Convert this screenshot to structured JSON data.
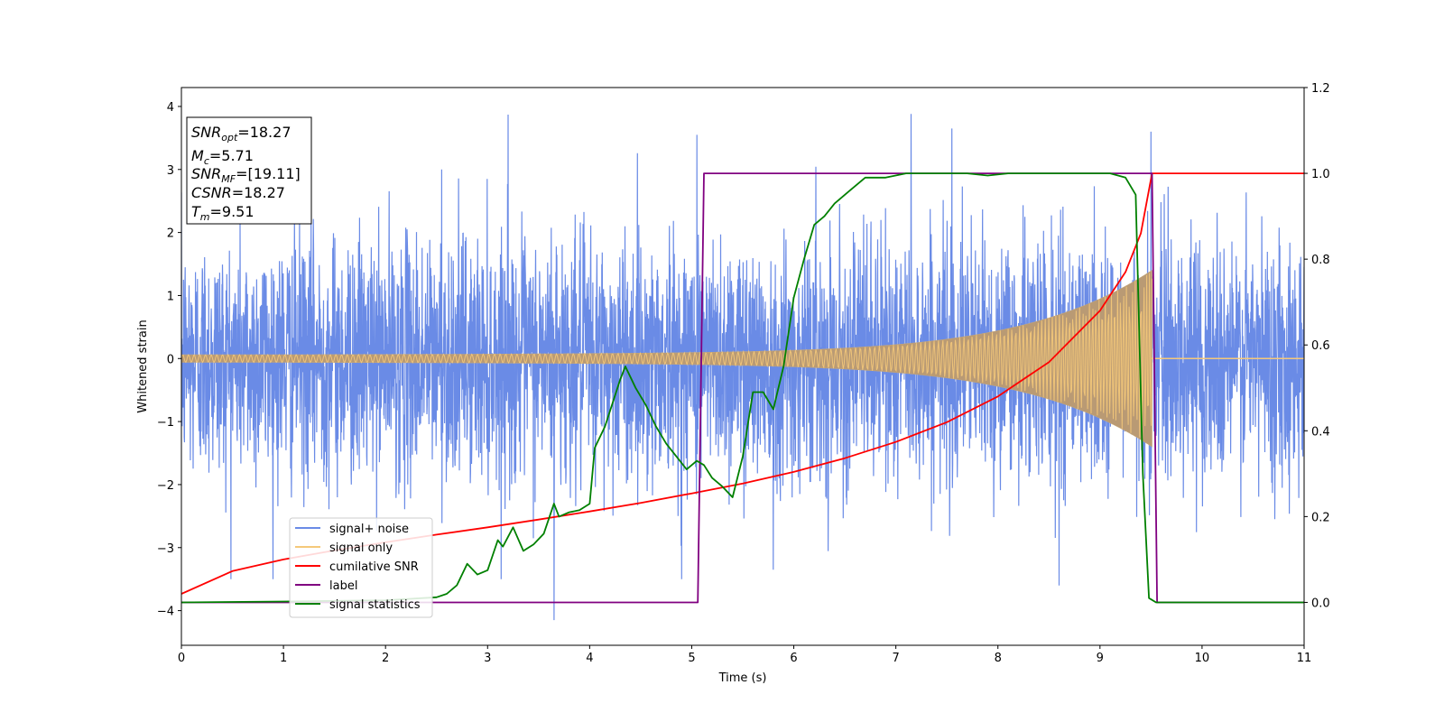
{
  "chart_data": {
    "type": "line",
    "xlabel": "Time (s)",
    "ylabel": "Whitened strain",
    "xlim": [
      0,
      11
    ],
    "ylim_left": [
      -4.55,
      4.3
    ],
    "ylim_right": [
      -0.1,
      1.2
    ],
    "x_ticks": [
      "0",
      "1",
      "2",
      "3",
      "4",
      "5",
      "6",
      "7",
      "8",
      "9",
      "10",
      "11"
    ],
    "y_ticks_left": [
      "4",
      "3",
      "2",
      "1",
      "0",
      "−1",
      "−2",
      "−3",
      "−4"
    ],
    "y_ticks_right": [
      "1.2",
      "1.0",
      "0.8",
      "0.6",
      "0.4",
      "0.2",
      "0.0"
    ],
    "merger_time": 9.51,
    "series": [
      {
        "name": "signal+ noise",
        "color": "#6a8be6",
        "axis": "left",
        "std": 0.95,
        "spikes": [
          [
            3.2,
            3.87
          ],
          [
            7.15,
            3.88
          ],
          [
            3.65,
            -4.15
          ],
          [
            5.05,
            3.55
          ],
          [
            5.8,
            -3.35
          ],
          [
            7.55,
            3.65
          ],
          [
            9.5,
            3.6
          ],
          [
            4.9,
            -3.5
          ],
          [
            8.6,
            -3.6
          ],
          [
            2.55,
            3.0
          ]
        ]
      },
      {
        "name": "signal only",
        "color": "#f5c97a",
        "axis": "left",
        "amplitude_start": 0.06,
        "amplitude_end": 1.3
      },
      {
        "name": "cumilative SNR",
        "color": "#ff0000",
        "axis": "right",
        "x": [
          0,
          0.5,
          1,
          1.5,
          2,
          2.5,
          3,
          3.5,
          4,
          4.5,
          5,
          5.5,
          6,
          6.5,
          7,
          7.5,
          8,
          8.5,
          9,
          9.25,
          9.4,
          9.51,
          11
        ],
        "y": [
          0.02,
          0.073,
          0.1,
          0.121,
          0.14,
          0.158,
          0.175,
          0.193,
          0.212,
          0.232,
          0.254,
          0.277,
          0.304,
          0.336,
          0.374,
          0.42,
          0.48,
          0.56,
          0.68,
          0.77,
          0.86,
          1.0,
          1.0
        ]
      },
      {
        "name": "label",
        "color": "#800080",
        "axis": "right",
        "x": [
          0,
          5.06,
          5.12,
          9.51,
          9.56,
          11
        ],
        "y": [
          0,
          0,
          1,
          1,
          0,
          0
        ]
      },
      {
        "name": "signal statistics",
        "color": "#008000",
        "axis": "right",
        "x": [
          0,
          1,
          2,
          2.5,
          2.6,
          2.7,
          2.8,
          2.9,
          3.0,
          3.1,
          3.15,
          3.25,
          3.35,
          3.45,
          3.55,
          3.65,
          3.7,
          3.8,
          3.9,
          4.0,
          4.05,
          4.15,
          4.3,
          4.35,
          4.45,
          4.55,
          4.65,
          4.75,
          4.85,
          4.95,
          5.05,
          5.12,
          5.2,
          5.3,
          5.4,
          5.5,
          5.6,
          5.7,
          5.8,
          5.9,
          6.0,
          6.1,
          6.2,
          6.3,
          6.4,
          6.55,
          6.7,
          6.9,
          7.1,
          7.3,
          7.5,
          7.7,
          7.9,
          8.1,
          8.3,
          8.5,
          8.7,
          8.9,
          9.1,
          9.25,
          9.35,
          9.42,
          9.48,
          9.55,
          9.65,
          10,
          11
        ],
        "y": [
          0.0,
          0.002,
          0.005,
          0.012,
          0.02,
          0.04,
          0.09,
          0.065,
          0.075,
          0.145,
          0.13,
          0.175,
          0.12,
          0.135,
          0.16,
          0.23,
          0.2,
          0.21,
          0.215,
          0.23,
          0.36,
          0.41,
          0.52,
          0.55,
          0.5,
          0.46,
          0.41,
          0.37,
          0.34,
          0.31,
          0.33,
          0.32,
          0.29,
          0.27,
          0.245,
          0.34,
          0.49,
          0.49,
          0.45,
          0.55,
          0.71,
          0.8,
          0.88,
          0.9,
          0.93,
          0.96,
          0.99,
          0.99,
          1.0,
          1.0,
          1.0,
          1.0,
          0.995,
          1.0,
          1.0,
          1.0,
          1.0,
          1.0,
          1.0,
          0.99,
          0.95,
          0.3,
          0.01,
          0.0,
          0.0,
          0.0,
          0.0
        ]
      }
    ],
    "info_box": {
      "snr_opt": "18.27",
      "mc": "5.71",
      "snr_mf": "[19.11]",
      "csnr": "18.27",
      "tm": "9.51"
    },
    "legend_position": "lower-left"
  }
}
